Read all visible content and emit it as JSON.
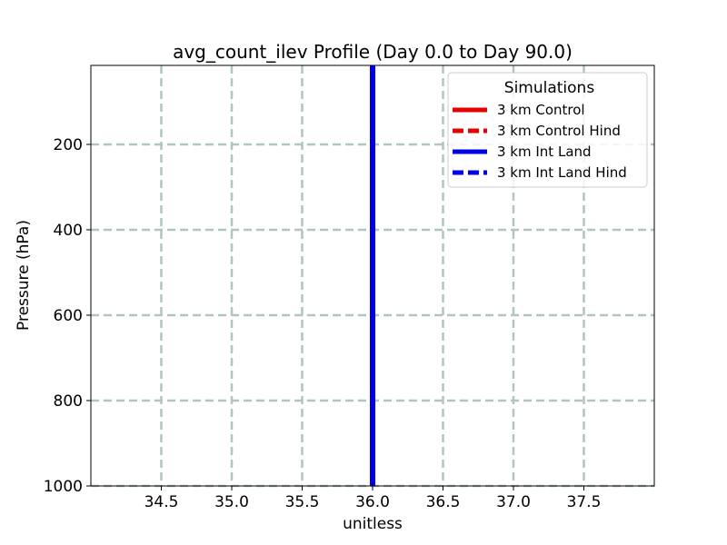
{
  "chart_data": {
    "type": "line",
    "title": "avg_count_ilev Profile (Day 0.0 to Day 90.0)",
    "xlabel": "unitless",
    "ylabel": "Pressure (hPa)",
    "xlim": [
      34.0,
      38.0
    ],
    "ylim": [
      1000,
      15
    ],
    "y_inverted": true,
    "x_ticks": [
      "34.5",
      "35.0",
      "35.5",
      "36.0",
      "36.5",
      "37.0",
      "37.5"
    ],
    "y_ticks": [
      "200",
      "400",
      "600",
      "800",
      "1000"
    ],
    "grid": true,
    "legend": {
      "title": "Simulations",
      "position": "top-right"
    },
    "series": [
      {
        "name": "3 km Control",
        "color": "#e60000",
        "style": "solid",
        "x": [
          36.0,
          36.0
        ],
        "y": [
          1000,
          15
        ]
      },
      {
        "name": "3 km Control Hind",
        "color": "#e60000",
        "style": "dashed",
        "x": [
          36.0,
          36.0
        ],
        "y": [
          1000,
          15
        ]
      },
      {
        "name": "3 km Int Land",
        "color": "#0000e6",
        "style": "solid",
        "x": [
          36.0,
          36.0
        ],
        "y": [
          1000,
          15
        ]
      },
      {
        "name": "3 km Int Land Hind",
        "color": "#0000e6",
        "style": "dashed",
        "x": [
          36.0,
          36.0
        ],
        "y": [
          1000,
          15
        ]
      }
    ]
  }
}
